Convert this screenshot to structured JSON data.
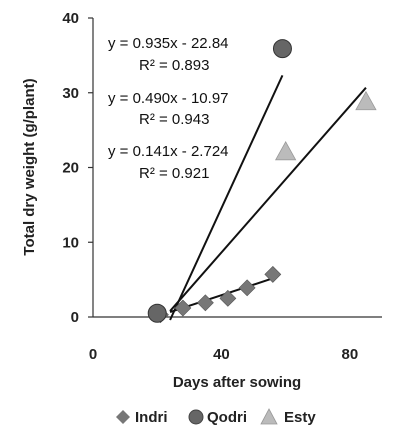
{
  "chart_data": {
    "type": "scatter",
    "xlabel": "Days after sowing",
    "ylabel": "Total dry weight (g/plant)",
    "xlim": [
      0,
      90
    ],
    "ylim": [
      0,
      40
    ],
    "xticks": [
      0,
      40,
      80
    ],
    "yticks": [
      0,
      10,
      20,
      30,
      40
    ],
    "grid": false,
    "legend_position": "bottom",
    "series": [
      {
        "name": "Indri",
        "marker": "diamond",
        "color": "#777777",
        "x": [
          21,
          28,
          35,
          42,
          48,
          56
        ],
        "y": [
          0.3,
          1.2,
          1.9,
          2.5,
          3.9,
          5.7
        ]
      },
      {
        "name": "Qodri",
        "marker": "circle",
        "color": "#666666",
        "x": [
          20,
          59
        ],
        "y": [
          0.5,
          35.9
        ]
      },
      {
        "name": "Esty",
        "marker": "triangle",
        "color": "#bbbbbb",
        "x": [
          60,
          85
        ],
        "y": [
          22.1,
          28.8
        ]
      }
    ],
    "trendlines": [
      {
        "equation": "y = 0.935x  - 22.84",
        "r2": "R² = 0.893",
        "slope": 0.935,
        "intercept": -22.84,
        "x_range": [
          24,
          59
        ]
      },
      {
        "equation": "y = 0.490x  - 10.97",
        "r2": "R² = 0.943",
        "slope": 0.49,
        "intercept": -10.97,
        "x_range": [
          24,
          85
        ]
      },
      {
        "equation": "y = 0.141x  - 2.724",
        "r2": "R² = 0.921",
        "slope": 0.141,
        "intercept": -2.724,
        "x_range": [
          24,
          56
        ]
      }
    ]
  }
}
